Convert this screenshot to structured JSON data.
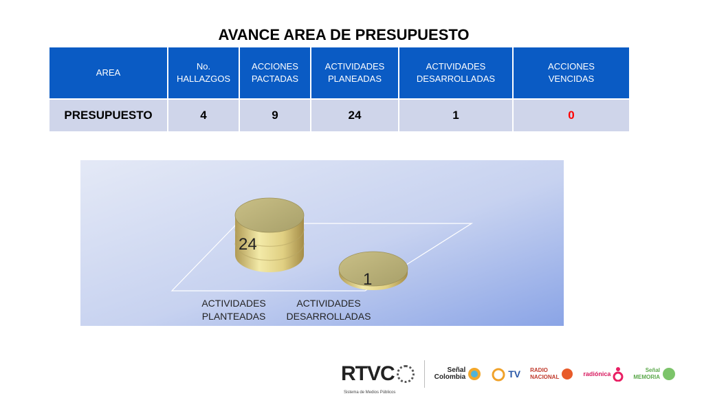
{
  "title": "AVANCE AREA DE PRESUPUESTO",
  "table": {
    "headers": [
      "AREA",
      "No.\nHALLAZGOS",
      "ACCIONES\nPACTADAS",
      "ACTIVIDADES\nPLANEADAS",
      "ACTIVIDADES\nDESARROLLADAS",
      "ACCIONES\nVENCIDAS"
    ],
    "row": [
      "PRESUPUESTO",
      "4",
      "9",
      "24",
      "1",
      "0"
    ]
  },
  "chart_data": {
    "type": "bar",
    "categories": [
      "ACTIVIDADES\nPLANTEADAS",
      "ACTIVIDADES\nDESARROLLADAS"
    ],
    "values": [
      24,
      1
    ],
    "bar_style": "3d-cylinder",
    "colors": {
      "bar": "#e0d48a",
      "bar_dark": "#a8955a",
      "background_top": "#dfe5f4",
      "background_bottom": "#8ea6e6"
    }
  },
  "logos": {
    "rtvc": "RTVC",
    "rtvc_sub": "Sistema de Medios Públicos",
    "senal_colombia": "Señal\nColombia",
    "tv": "TV",
    "radio_nacional": "RADIO\nNACIONAL",
    "radionica": "radiónica",
    "senal_memoria": "Señal\nMEMORIA"
  }
}
